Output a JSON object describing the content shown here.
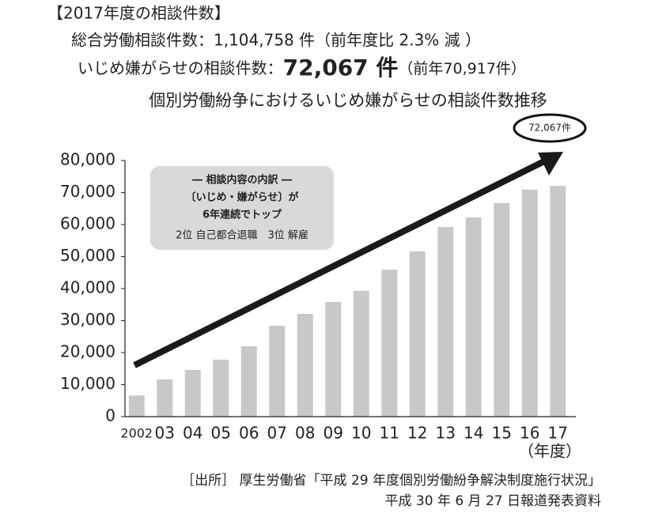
{
  "chart_data": {
    "type": "bar",
    "heading": "【2017年度の相談件数】",
    "summary_total": "総合労働相談件数：1,104,758 件（前年度比 2.3% 減 ）",
    "summary_harassment_label": "いじめ嫌がらせの相談件数：",
    "summary_harassment_value": "72,067 件",
    "summary_previous": "（前年70,917件）",
    "title": "個別労働紛争におけるいじめ嫌がらせの相談件数推移",
    "callout": "72,067件",
    "inset_box": [
      "― 相談内容の内訳 ―",
      "〔いじめ・嫌がらせ〕が",
      "6年連続でトップ",
      "2位 自己都合退職　3位 解雇"
    ],
    "categories": [
      "2002",
      "03",
      "04",
      "05",
      "06",
      "07",
      "08",
      "09",
      "10",
      "11",
      "12",
      "13",
      "14",
      "15",
      "16",
      "17"
    ],
    "values": [
      6600,
      11600,
      14600,
      17800,
      22000,
      28400,
      32100,
      35800,
      39300,
      45900,
      51600,
      59200,
      62200,
      66700,
      70917,
      72067
    ],
    "color": "#c8c8c8",
    "ylim": [
      0,
      80000
    ],
    "yticks": [
      0,
      {
        "value": 10000,
        "label": "10,000"
      },
      {
        "value": 20000,
        "label": "20,000"
      },
      {
        "value": 30000,
        "label": "30,000"
      },
      {
        "value": 40000,
        "label": "40,000"
      },
      {
        "value": 50000,
        "label": "50,000"
      },
      {
        "value": 60000,
        "label": "60,000"
      },
      {
        "value": 70000,
        "label": "70,000"
      },
      {
        "value": 80000,
        "label": "80,000"
      }
    ],
    "grid": false,
    "x_unit": "（年度）",
    "source": [
      "［出所］ 厚生労働省「平成 29 年度個別労働紛争解決制度施行状況」",
      "平成 30 年 6 月 27 日報道発表資料"
    ]
  }
}
